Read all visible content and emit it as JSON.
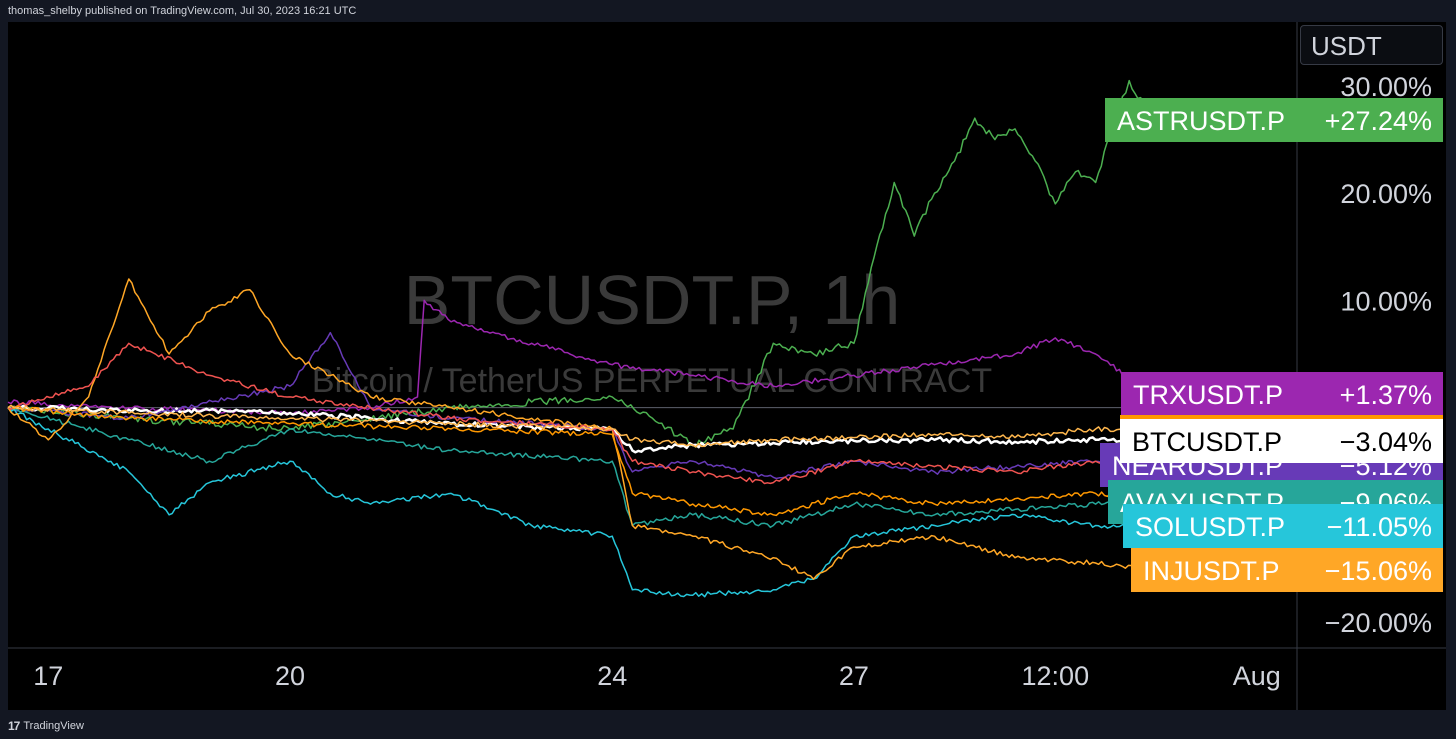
{
  "header": {
    "publisher": "thomas_shelby published on TradingView.com, Jul 30, 2023 16:21 UTC"
  },
  "footer": {
    "logo_mark": "17",
    "brand": "TradingView"
  },
  "price_scale": {
    "unit": "USDT"
  },
  "colors": {
    "background": "#000000",
    "frame": "#131722",
    "text": "#d1d4dc"
  },
  "chart_data": {
    "type": "line",
    "watermark": {
      "title": "BTCUSDT.P, 1h",
      "subtitle": "Bitcoin / TetherUS PERPETUAL CONTRACT"
    },
    "ylim": [
      -24,
      35
    ],
    "y_ticks": [
      {
        "value": 30,
        "label": "30.00%"
      },
      {
        "value": 20,
        "label": "20.00%"
      },
      {
        "value": 10,
        "label": "10.00%"
      },
      {
        "value": -20,
        "label": "−20.00%"
      }
    ],
    "x_range": [
      "2023-07-16T12:00",
      "2023-08-01T12:00"
    ],
    "x_ticks": [
      {
        "t": "2023-07-17T00:00",
        "label": "17"
      },
      {
        "t": "2023-07-20T00:00",
        "label": "20"
      },
      {
        "t": "2023-07-24T00:00",
        "label": "24"
      },
      {
        "t": "2023-07-27T00:00",
        "label": "27"
      },
      {
        "t": "2023-07-29T12:00",
        "label": "12:00"
      },
      {
        "t": "2023-08-01T00:00",
        "label": "Aug"
      }
    ],
    "grid": false,
    "series": [
      {
        "name": "ASTRUSDT.P",
        "label": "+27.24%",
        "color": "#4caf50",
        "points": [
          [
            "2023-07-16T12:00",
            0
          ],
          [
            "2023-07-18T00:00",
            -1
          ],
          [
            "2023-07-20T00:00",
            -2
          ],
          [
            "2023-07-22T00:00",
            0
          ],
          [
            "2023-07-24T00:00",
            1
          ],
          [
            "2023-07-24T12:00",
            -1
          ],
          [
            "2023-07-25T00:00",
            -3.5
          ],
          [
            "2023-07-25T12:00",
            -2
          ],
          [
            "2023-07-26T00:00",
            6
          ],
          [
            "2023-07-26T12:00",
            5
          ],
          [
            "2023-07-27T00:00",
            6
          ],
          [
            "2023-07-27T06:00",
            14
          ],
          [
            "2023-07-27T12:00",
            21
          ],
          [
            "2023-07-27T18:00",
            16
          ],
          [
            "2023-07-28T00:00",
            20
          ],
          [
            "2023-07-28T06:00",
            23
          ],
          [
            "2023-07-28T12:00",
            27
          ],
          [
            "2023-07-28T18:00",
            25
          ],
          [
            "2023-07-29T00:00",
            26
          ],
          [
            "2023-07-29T06:00",
            23
          ],
          [
            "2023-07-29T12:00",
            19
          ],
          [
            "2023-07-29T18:00",
            22
          ],
          [
            "2023-07-30T00:00",
            21
          ],
          [
            "2023-07-30T06:00",
            27
          ],
          [
            "2023-07-30T10:00",
            30.5
          ],
          [
            "2023-07-30T16:00",
            27.24
          ]
        ]
      },
      {
        "name": "TRXUSDT.P",
        "label": "+1.37%",
        "color": "#9c27b0",
        "points": [
          [
            "2023-07-16T12:00",
            0.5
          ],
          [
            "2023-07-18T00:00",
            0
          ],
          [
            "2023-07-20T00:00",
            -0.5
          ],
          [
            "2023-07-21T00:00",
            0
          ],
          [
            "2023-07-21T14:00",
            1
          ],
          [
            "2023-07-21T16:00",
            10
          ],
          [
            "2023-07-22T00:00",
            8
          ],
          [
            "2023-07-23T00:00",
            6
          ],
          [
            "2023-07-24T00:00",
            4
          ],
          [
            "2023-07-25T00:00",
            3
          ],
          [
            "2023-07-26T00:00",
            2
          ],
          [
            "2023-07-27T00:00",
            3
          ],
          [
            "2023-07-28T00:00",
            4
          ],
          [
            "2023-07-29T00:00",
            5
          ],
          [
            "2023-07-29T12:00",
            6.5
          ],
          [
            "2023-07-30T00:00",
            5
          ],
          [
            "2023-07-30T16:00",
            1.37
          ]
        ]
      },
      {
        "name": "BTCUSDT.P",
        "label": "−3.04%",
        "color": "#ffffff",
        "points": [
          [
            "2023-07-16T12:00",
            0
          ],
          [
            "2023-07-18T00:00",
            -0.2
          ],
          [
            "2023-07-20T00:00",
            -0.5
          ],
          [
            "2023-07-21T00:00",
            -1
          ],
          [
            "2023-07-22T00:00",
            -1.5
          ],
          [
            "2023-07-23T00:00",
            -1.8
          ],
          [
            "2023-07-24T00:00",
            -2
          ],
          [
            "2023-07-24T06:00",
            -4
          ],
          [
            "2023-07-25T00:00",
            -3.5
          ],
          [
            "2023-07-26T00:00",
            -3.3
          ],
          [
            "2023-07-27T00:00",
            -3.1
          ],
          [
            "2023-07-28T00:00",
            -3
          ],
          [
            "2023-07-29T00:00",
            -3.2
          ],
          [
            "2023-07-30T00:00",
            -3
          ],
          [
            "2023-07-30T16:00",
            -3.04
          ]
        ]
      },
      {
        "name": "NEARUSDT.P",
        "label": "−5.12%",
        "color": "#673ab7",
        "points": [
          [
            "2023-07-16T12:00",
            0
          ],
          [
            "2023-07-18T00:00",
            -1
          ],
          [
            "2023-07-20T00:00",
            2
          ],
          [
            "2023-07-20T12:00",
            7
          ],
          [
            "2023-07-21T00:00",
            0
          ],
          [
            "2023-07-22T00:00",
            -1
          ],
          [
            "2023-07-24T00:00",
            -2
          ],
          [
            "2023-07-24T06:00",
            -6
          ],
          [
            "2023-07-25T00:00",
            -5
          ],
          [
            "2023-07-26T00:00",
            -6.5
          ],
          [
            "2023-07-27T00:00",
            -5
          ],
          [
            "2023-07-28T00:00",
            -6
          ],
          [
            "2023-07-29T00:00",
            -5.5
          ],
          [
            "2023-07-30T00:00",
            -5
          ],
          [
            "2023-07-30T16:00",
            -5.12
          ]
        ]
      },
      {
        "name": "AVAXUSDT.P",
        "label": "−9.06%",
        "color": "#26a69a",
        "points": [
          [
            "2023-07-16T12:00",
            0
          ],
          [
            "2023-07-18T00:00",
            -3
          ],
          [
            "2023-07-19T00:00",
            -5
          ],
          [
            "2023-07-20T00:00",
            -2
          ],
          [
            "2023-07-21T00:00",
            -3
          ],
          [
            "2023-07-22T00:00",
            -4
          ],
          [
            "2023-07-24T00:00",
            -5
          ],
          [
            "2023-07-24T06:00",
            -11
          ],
          [
            "2023-07-25T00:00",
            -10
          ],
          [
            "2023-07-26T00:00",
            -11
          ],
          [
            "2023-07-27T00:00",
            -9
          ],
          [
            "2023-07-28T00:00",
            -10
          ],
          [
            "2023-07-29T00:00",
            -9.5
          ],
          [
            "2023-07-30T00:00",
            -9
          ],
          [
            "2023-07-30T16:00",
            -9.06
          ]
        ]
      },
      {
        "name": "SOLUSDT.P",
        "label": "−11.05%",
        "color": "#26c6da",
        "points": [
          [
            "2023-07-16T12:00",
            0
          ],
          [
            "2023-07-17T00:00",
            -2
          ],
          [
            "2023-07-18T00:00",
            -6
          ],
          [
            "2023-07-18T12:00",
            -10
          ],
          [
            "2023-07-19T00:00",
            -7
          ],
          [
            "2023-07-20T00:00",
            -5
          ],
          [
            "2023-07-20T12:00",
            -8
          ],
          [
            "2023-07-21T00:00",
            -9
          ],
          [
            "2023-07-22T00:00",
            -8
          ],
          [
            "2023-07-23T00:00",
            -11
          ],
          [
            "2023-07-24T00:00",
            -12
          ],
          [
            "2023-07-24T06:00",
            -17
          ],
          [
            "2023-07-25T00:00",
            -17.5
          ],
          [
            "2023-07-26T00:00",
            -17
          ],
          [
            "2023-07-26T12:00",
            -16
          ],
          [
            "2023-07-27T00:00",
            -12
          ],
          [
            "2023-07-28T00:00",
            -11
          ],
          [
            "2023-07-29T00:00",
            -10
          ],
          [
            "2023-07-30T00:00",
            -11
          ],
          [
            "2023-07-30T16:00",
            -11.05
          ]
        ]
      },
      {
        "name": "INJUSDT.P",
        "label": "−15.06%",
        "color": "#ffa726",
        "points": [
          [
            "2023-07-16T12:00",
            0
          ],
          [
            "2023-07-17T00:00",
            -3
          ],
          [
            "2023-07-17T12:00",
            1
          ],
          [
            "2023-07-18T00:00",
            12
          ],
          [
            "2023-07-18T12:00",
            5
          ],
          [
            "2023-07-19T00:00",
            9
          ],
          [
            "2023-07-19T12:00",
            11
          ],
          [
            "2023-07-20T00:00",
            5
          ],
          [
            "2023-07-20T12:00",
            3
          ],
          [
            "2023-07-21T00:00",
            1
          ],
          [
            "2023-07-22T00:00",
            0
          ],
          [
            "2023-07-23T00:00",
            -1
          ],
          [
            "2023-07-24T00:00",
            -2
          ],
          [
            "2023-07-24T06:00",
            -11
          ],
          [
            "2023-07-25T00:00",
            -12
          ],
          [
            "2023-07-26T00:00",
            -14
          ],
          [
            "2023-07-26T12:00",
            -16
          ],
          [
            "2023-07-27T00:00",
            -13
          ],
          [
            "2023-07-28T00:00",
            -12
          ],
          [
            "2023-07-29T00:00",
            -14
          ],
          [
            "2023-07-30T00:00",
            -14.5
          ],
          [
            "2023-07-30T16:00",
            -15.06
          ]
        ]
      },
      {
        "name": "",
        "label": "",
        "color": "#ef5350",
        "points": [
          [
            "2023-07-16T12:00",
            0
          ],
          [
            "2023-07-17T12:00",
            2
          ],
          [
            "2023-07-18T00:00",
            6
          ],
          [
            "2023-07-19T00:00",
            3
          ],
          [
            "2023-07-20T00:00",
            1
          ],
          [
            "2023-07-21T00:00",
            0
          ],
          [
            "2023-07-22T00:00",
            -1
          ],
          [
            "2023-07-24T00:00",
            -2
          ],
          [
            "2023-07-24T06:00",
            -5
          ],
          [
            "2023-07-25T00:00",
            -6
          ],
          [
            "2023-07-26T00:00",
            -7
          ],
          [
            "2023-07-27T00:00",
            -5
          ],
          [
            "2023-07-28T00:00",
            -5.5
          ],
          [
            "2023-07-29T00:00",
            -6
          ],
          [
            "2023-07-30T00:00",
            -5
          ],
          [
            "2023-07-30T16:00",
            -5.5
          ]
        ]
      },
      {
        "name": "",
        "label": "",
        "color": "#ff9800",
        "points": [
          [
            "2023-07-16T12:00",
            0
          ],
          [
            "2023-07-18T00:00",
            -1
          ],
          [
            "2023-07-20T00:00",
            -1.5
          ],
          [
            "2023-07-22T00:00",
            -2
          ],
          [
            "2023-07-24T00:00",
            -2.5
          ],
          [
            "2023-07-24T06:00",
            -8
          ],
          [
            "2023-07-25T00:00",
            -9
          ],
          [
            "2023-07-26T00:00",
            -10
          ],
          [
            "2023-07-27T00:00",
            -8
          ],
          [
            "2023-07-28T00:00",
            -9
          ],
          [
            "2023-07-29T00:00",
            -8.5
          ],
          [
            "2023-07-30T00:00",
            -8
          ],
          [
            "2023-07-30T16:00",
            -8.5
          ]
        ]
      },
      {
        "name": "",
        "label": "",
        "color": "#ffb74d",
        "points": [
          [
            "2023-07-16T12:00",
            0
          ],
          [
            "2023-07-18T00:00",
            -0.5
          ],
          [
            "2023-07-20T00:00",
            -1
          ],
          [
            "2023-07-22T00:00",
            -1.5
          ],
          [
            "2023-07-24T00:00",
            -2
          ],
          [
            "2023-07-24T06:00",
            -3
          ],
          [
            "2023-07-25T00:00",
            -3.5
          ],
          [
            "2023-07-26T00:00",
            -3
          ],
          [
            "2023-07-27T00:00",
            -2.8
          ],
          [
            "2023-07-28T00:00",
            -2.5
          ],
          [
            "2023-07-29T00:00",
            -2.8
          ],
          [
            "2023-07-30T00:00",
            -2
          ],
          [
            "2023-07-30T16:00",
            -2.2
          ]
        ]
      }
    ],
    "reference_line": 0
  }
}
